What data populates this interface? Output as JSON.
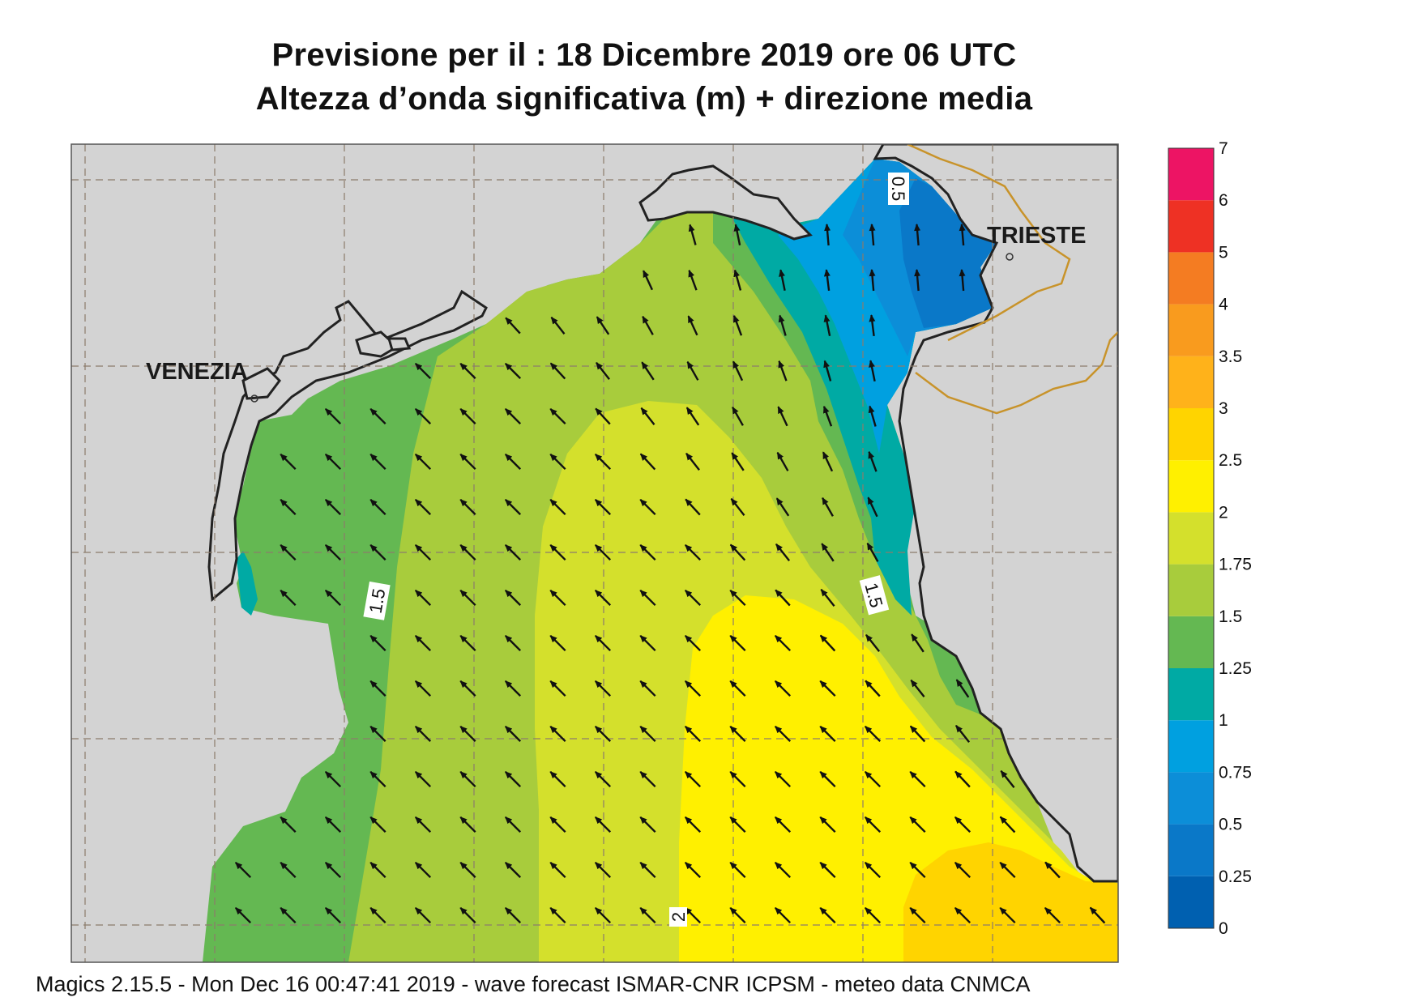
{
  "title": {
    "line1": "Previsione per il  :  18 Dicembre  2019   ore 06 UTC",
    "line2": "Altezza d’onda significativa (m) + direzione media"
  },
  "footer": "Magics 2.15.5 - Mon Dec 16 00:47:41 2019 - wave forecast  ISMAR-CNR  ICPSM - meteo data   CNMCA",
  "cities": [
    {
      "name": "VENEZIA"
    },
    {
      "name": "TRIESTE"
    }
  ],
  "contour_labels": [
    "0.5",
    "1.5",
    "1.5",
    "2"
  ],
  "colorbar": {
    "ticks": [
      "0",
      "0.25",
      "0.5",
      "0.75",
      "1",
      "1.25",
      "1.5",
      "1.75",
      "2",
      "2.5",
      "3",
      "3.5",
      "4",
      "5",
      "6",
      "7"
    ],
    "colors": [
      "#0060b0",
      "#0a78c8",
      "#0c8ed8",
      "#00a0e0",
      "#00aaa4",
      "#64b852",
      "#a8cc3c",
      "#d4e02c",
      "#fff000",
      "#ffd400",
      "#ffb21a",
      "#f99b1e",
      "#f47c22",
      "#ee3124",
      "#ed1464"
    ]
  },
  "colors": {
    "land": "#d3d3d3",
    "coast": "#222222",
    "border": "#c8932a",
    "grid": "#8c7b6b"
  }
}
